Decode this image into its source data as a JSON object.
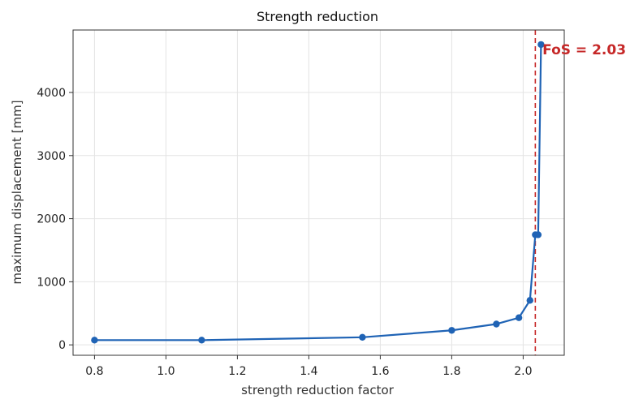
{
  "chart_data": {
    "type": "line",
    "title": "Strength reduction",
    "xlabel": "strength reduction factor",
    "ylabel": "maximum displacement [mm]",
    "xlim": [
      0.74,
      2.115
    ],
    "ylim": [
      -165,
      4990
    ],
    "x_ticks": [
      0.8,
      1.0,
      1.2,
      1.4,
      1.6,
      1.8,
      2.0
    ],
    "x_tick_labels": [
      "0.8",
      "1.0",
      "1.2",
      "1.4",
      "1.6",
      "1.8",
      "2.0"
    ],
    "y_ticks": [
      0,
      1000,
      2000,
      3000,
      4000
    ],
    "y_tick_labels": [
      "0",
      "1000",
      "2000",
      "3000",
      "4000"
    ],
    "grid": true,
    "series": [
      {
        "color": "#1f63b5",
        "x": [
          0.8,
          1.1,
          1.55,
          1.8,
          1.925,
          1.988,
          2.019,
          2.034,
          2.042,
          2.05
        ],
        "y": [
          75,
          75,
          120,
          230,
          330,
          430,
          705,
          1745,
          1745,
          4760
        ]
      }
    ],
    "reference_line": {
      "orientation": "vertical",
      "x": 2.034,
      "color": "#c62828",
      "style": "dashed"
    },
    "annotation": {
      "text": "FoS = 2.03",
      "x": 2.054,
      "y": 4680,
      "color": "#c62828"
    }
  }
}
